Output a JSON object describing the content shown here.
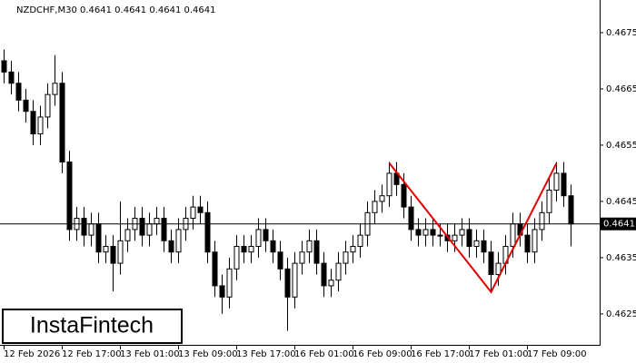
{
  "chart_data": {
    "type": "candlestick",
    "title": "NZDCHF,M30 0.4641 0.4641 0.4641 0.4641",
    "categories": [
      "12 Feb 2026",
      null,
      null,
      null,
      null,
      null,
      null,
      null,
      "12 Feb 17:00",
      null,
      null,
      null,
      null,
      null,
      null,
      null,
      "13 Feb 01:00",
      null,
      null,
      null,
      null,
      null,
      null,
      null,
      "13 Feb 09:00",
      null,
      null,
      null,
      null,
      null,
      null,
      null,
      "13 Feb 17:00",
      null,
      null,
      null,
      null,
      null,
      null,
      null,
      "16 Feb 01:00",
      null,
      null,
      null,
      null,
      null,
      null,
      null,
      "16 Feb 09:00",
      null,
      null,
      null,
      null,
      null,
      null,
      null,
      "16 Feb 17:00",
      null,
      null,
      null,
      null,
      null,
      null,
      null,
      "17 Feb 01:00",
      null,
      null,
      null,
      null,
      null,
      null,
      null,
      "17 Feb 09:00",
      null,
      null,
      null,
      null,
      null,
      null
    ],
    "open": [
      0.467,
      0.4668,
      0.4666,
      0.4663,
      0.4661,
      0.4657,
      0.466,
      0.4664,
      0.4666,
      0.4652,
      0.464,
      0.4642,
      0.4639,
      0.4641,
      0.4636,
      0.4637,
      0.4634,
      0.4638,
      0.464,
      0.4642,
      0.4639,
      0.4641,
      0.4642,
      0.4638,
      0.4636,
      0.464,
      0.4642,
      0.4644,
      0.4643,
      0.4636,
      0.463,
      0.4628,
      0.4633,
      0.4637,
      0.4636,
      0.4637,
      0.464,
      0.4638,
      0.4636,
      0.4633,
      0.4628,
      0.4634,
      0.4636,
      0.4638,
      0.4634,
      0.463,
      0.4631,
      0.4634,
      0.4636,
      0.4637,
      0.4639,
      0.4643,
      0.4645,
      0.4646,
      0.465,
      0.4648,
      0.4644,
      0.464,
      0.4639,
      0.464,
      0.4639,
      0.4639,
      0.4638,
      0.4639,
      0.464,
      0.4637,
      0.4638,
      0.4636,
      0.4632,
      0.4634,
      0.4637,
      0.4641,
      0.4639,
      0.4636,
      0.464,
      0.4643,
      0.4647,
      0.465,
      0.4646
    ],
    "high": [
      0.4672,
      0.467,
      0.4668,
      0.4665,
      0.4663,
      0.4662,
      0.4666,
      0.4671,
      0.4668,
      0.4654,
      0.4644,
      0.4644,
      0.4643,
      0.4643,
      0.4639,
      0.4639,
      0.4645,
      0.4642,
      0.4644,
      0.4644,
      0.4643,
      0.4644,
      0.4644,
      0.464,
      0.4642,
      0.4644,
      0.4646,
      0.4646,
      0.4645,
      0.4638,
      0.4632,
      0.4635,
      0.4639,
      0.4639,
      0.4639,
      0.4642,
      0.4642,
      0.464,
      0.4638,
      0.4635,
      0.4636,
      0.4638,
      0.464,
      0.464,
      0.4636,
      0.4633,
      0.4636,
      0.4638,
      0.4639,
      0.4641,
      0.4645,
      0.4647,
      0.4648,
      0.4652,
      0.4652,
      0.465,
      0.4646,
      0.4642,
      0.4642,
      0.4642,
      0.4641,
      0.4641,
      0.4641,
      0.4642,
      0.4642,
      0.464,
      0.464,
      0.4638,
      0.4636,
      0.4639,
      0.4643,
      0.4643,
      0.4641,
      0.4642,
      0.4645,
      0.4649,
      0.4652,
      0.4652,
      0.4648
    ],
    "low": [
      0.4666,
      0.4664,
      0.4661,
      0.4659,
      0.4655,
      0.4655,
      0.4658,
      0.4662,
      0.465,
      0.4638,
      0.4638,
      0.4637,
      0.4637,
      0.4634,
      0.4634,
      0.4629,
      0.4632,
      0.4636,
      0.4638,
      0.4637,
      0.4637,
      0.4639,
      0.4636,
      0.4634,
      0.4634,
      0.4638,
      0.464,
      0.4641,
      0.4634,
      0.4628,
      0.4625,
      0.4626,
      0.4631,
      0.4634,
      0.4634,
      0.4635,
      0.4636,
      0.4634,
      0.4631,
      0.4622,
      0.4626,
      0.4632,
      0.4634,
      0.4632,
      0.4628,
      0.4628,
      0.4629,
      0.4632,
      0.4634,
      0.4635,
      0.4637,
      0.4641,
      0.4643,
      0.4644,
      0.4646,
      0.4642,
      0.4638,
      0.4637,
      0.4637,
      0.4637,
      0.4637,
      0.4636,
      0.4636,
      0.4637,
      0.4635,
      0.4635,
      0.4634,
      0.4629,
      0.463,
      0.4632,
      0.4635,
      0.4637,
      0.4634,
      0.4634,
      0.4638,
      0.4641,
      0.4645,
      0.4644,
      0.4637
    ],
    "close": [
      0.4668,
      0.4666,
      0.4663,
      0.4661,
      0.4657,
      0.466,
      0.4664,
      0.4666,
      0.4652,
      0.464,
      0.4642,
      0.4639,
      0.4641,
      0.4636,
      0.4637,
      0.4634,
      0.4638,
      0.464,
      0.4642,
      0.4639,
      0.4641,
      0.4642,
      0.4638,
      0.4636,
      0.464,
      0.4642,
      0.4644,
      0.4643,
      0.4636,
      0.463,
      0.4628,
      0.4633,
      0.4637,
      0.4636,
      0.4637,
      0.464,
      0.4638,
      0.4636,
      0.4633,
      0.4628,
      0.4634,
      0.4636,
      0.4638,
      0.4634,
      0.463,
      0.4631,
      0.4634,
      0.4636,
      0.4637,
      0.4639,
      0.4643,
      0.4645,
      0.4646,
      0.465,
      0.4648,
      0.4644,
      0.464,
      0.4639,
      0.464,
      0.4639,
      0.4639,
      0.4638,
      0.4639,
      0.464,
      0.4637,
      0.4638,
      0.4636,
      0.4632,
      0.4634,
      0.4637,
      0.4641,
      0.4639,
      0.4636,
      0.464,
      0.4643,
      0.4647,
      0.465,
      0.4646,
      0.4641
    ],
    "up_color": "#ffffff",
    "down_color": "#000000",
    "ylim": [
      0.46195,
      0.46808
    ],
    "yticks": [
      0.4625,
      0.4635,
      0.4645,
      0.4655,
      0.4665,
      0.4675
    ],
    "current_price": 0.4641,
    "pattern": {
      "color": "#e00000",
      "index": [
        53,
        67,
        76
      ],
      "values": [
        0.46518,
        0.46289,
        0.46518
      ]
    }
  },
  "logo": {
    "text": "InstaFintech"
  }
}
